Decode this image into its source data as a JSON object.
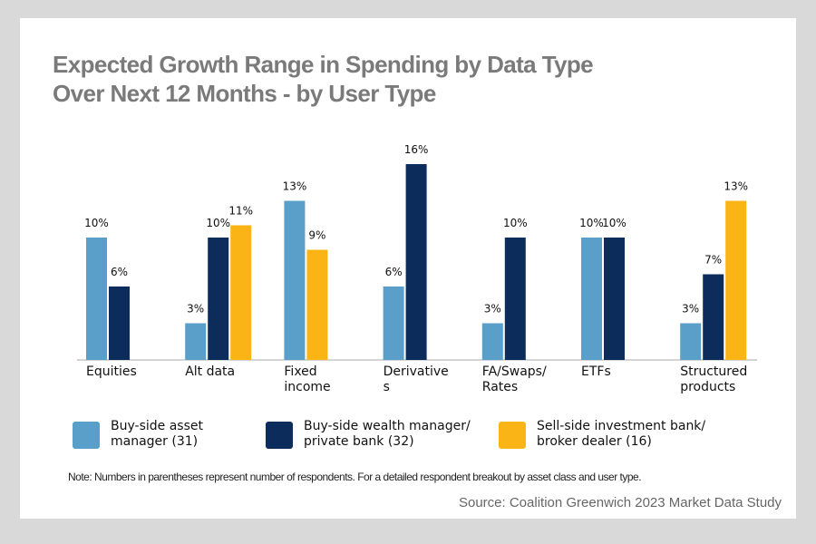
{
  "chart_data": {
    "type": "bar",
    "title": "Expected Growth Range in Spending by Data Type Over Next 12 Months - by User Type",
    "categories": [
      "Equities",
      "Alt data",
      "Fixed income",
      "Derivatives",
      "FA/Swaps/Rates",
      "ETFs",
      "Structured products"
    ],
    "series": [
      {
        "name": "Buy-side asset manager (31)",
        "color": "#5a9fc9",
        "values": [
          10,
          3,
          13,
          6,
          3,
          10,
          3
        ],
        "value_labels": [
          "10%",
          "3%",
          "13%",
          "6%",
          "3%",
          "10%",
          "3%"
        ]
      },
      {
        "name": "Buy-side wealth manager/ private bank (32)",
        "color": "#0c2c5c",
        "values": [
          6,
          10,
          null,
          16,
          10,
          10,
          7
        ],
        "value_labels": [
          "6%",
          "10%",
          null,
          "16%",
          "10%",
          "10%",
          "7%"
        ]
      },
      {
        "name": "Sell-side investment bank/ broker dealer (16)",
        "color": "#fbb415",
        "values": [
          null,
          11,
          9,
          null,
          null,
          null,
          13
        ],
        "value_labels": [
          null,
          "11%",
          "9%",
          null,
          null,
          null,
          "13%"
        ]
      }
    ],
    "ylim": [
      0,
      16
    ],
    "note": "Note: Numbers in parentheses represent number of respondents. For a detailed respondent breakout by asset class and user type.",
    "source": "Source: Coalition Greenwich 2023 Market Data Study"
  }
}
